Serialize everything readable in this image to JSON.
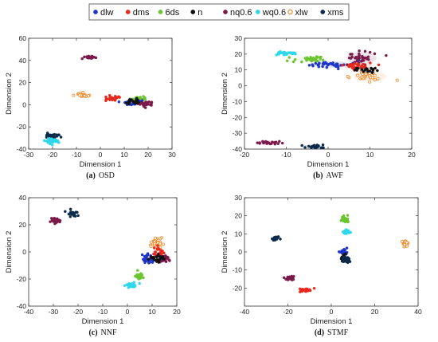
{
  "legend": {
    "entries": [
      {
        "label": "dlw",
        "color": "#1f35c8"
      },
      {
        "label": "dms",
        "color": "#e8291c"
      },
      {
        "label": "6ds",
        "color": "#6cc431"
      },
      {
        "label": "n",
        "color": "#111111"
      },
      {
        "label": "nq0.6",
        "color": "#7b1a4a"
      },
      {
        "label": "wq0.6",
        "color": "#2fd7ea"
      },
      {
        "label": "xlw",
        "color": "#f08a2a"
      },
      {
        "label": "xms",
        "color": "#0c2a4a"
      }
    ]
  },
  "chart_data": [
    {
      "type": "scatter",
      "caption_label": "(a)",
      "caption_name": "OSD",
      "xlabel": "Dimension 1",
      "ylabel": "Dimension 2",
      "xlim": [
        -30,
        30
      ],
      "ylim": [
        -40,
        60
      ],
      "xticks": [
        -30,
        -20,
        -10,
        0,
        10,
        20,
        30
      ],
      "yticks": [
        -40,
        -20,
        0,
        20,
        40,
        60
      ],
      "clusters": [
        {
          "series": "xms",
          "cx": -20.5,
          "cy": -28.0,
          "sx": 1.5,
          "sy": 1.2,
          "n": 30
        },
        {
          "series": "wq0.6",
          "cx": -20.5,
          "cy": -33.0,
          "sx": 1.4,
          "sy": 1.2,
          "n": 30
        },
        {
          "series": "nq0.6",
          "cx": -4.5,
          "cy": 43.0,
          "sx": 1.2,
          "sy": 0.8,
          "n": 25
        },
        {
          "series": "xlw",
          "cx": -7.5,
          "cy": 8.5,
          "sx": 1.2,
          "sy": 1.0,
          "n": 25
        },
        {
          "series": "dms",
          "cx": 5.0,
          "cy": 5.5,
          "sx": 1.6,
          "sy": 1.0,
          "n": 30
        },
        {
          "series": "6ds",
          "cx": 15.5,
          "cy": 4.5,
          "sx": 2.0,
          "sy": 1.3,
          "n": 30
        },
        {
          "series": "dlw",
          "cx": 12.5,
          "cy": 2.0,
          "sx": 1.8,
          "sy": 1.2,
          "n": 30
        },
        {
          "series": "n",
          "cx": 14.5,
          "cy": 2.5,
          "sx": 1.5,
          "sy": 1.2,
          "n": 25
        },
        {
          "series": "nq0.6",
          "cx": 18.5,
          "cy": 0.5,
          "sx": 1.5,
          "sy": 1.2,
          "n": 25
        }
      ]
    },
    {
      "type": "scatter",
      "caption_label": "(b)",
      "caption_name": "AWF",
      "xlabel": "Dimension 1",
      "ylabel": "Dimension 2",
      "xlim": [
        -20,
        20
      ],
      "ylim": [
        -40,
        30
      ],
      "xticks": [
        -20,
        -10,
        0,
        10,
        20
      ],
      "yticks": [
        -40,
        -30,
        -20,
        -10,
        0,
        10,
        20,
        30
      ],
      "clusters": [
        {
          "series": "wq0.6",
          "cx": -10.0,
          "cy": 20.5,
          "sx": 1.2,
          "sy": 0.6,
          "n": 30
        },
        {
          "series": "6ds",
          "cx": -4.5,
          "cy": 17.0,
          "sx": 2.0,
          "sy": 0.8,
          "n": 30
        },
        {
          "series": "dlw",
          "cx": 0.5,
          "cy": 13.5,
          "sx": 2.5,
          "sy": 1.2,
          "n": 35
        },
        {
          "series": "nq0.6",
          "cx": 8.0,
          "cy": 17.5,
          "sx": 2.0,
          "sy": 2.0,
          "n": 35
        },
        {
          "series": "dms",
          "cx": 7.0,
          "cy": 12.5,
          "sx": 2.0,
          "sy": 1.2,
          "n": 30
        },
        {
          "series": "xlw",
          "cx": 10.0,
          "cy": 6.0,
          "sx": 2.2,
          "sy": 1.8,
          "n": 35
        },
        {
          "series": "n",
          "cx": 9.0,
          "cy": 10.0,
          "sx": 1.5,
          "sy": 1.0,
          "n": 20
        },
        {
          "series": "nq0.6",
          "cx": -14.5,
          "cy": -36.0,
          "sx": 1.5,
          "sy": 0.5,
          "n": 25
        },
        {
          "series": "xms",
          "cx": -3.5,
          "cy": -38.5,
          "sx": 1.5,
          "sy": 0.5,
          "n": 25
        }
      ]
    },
    {
      "type": "scatter",
      "caption_label": "(c)",
      "caption_name": "NNF",
      "xlabel": "Dimension 1",
      "ylabel": "Dimension 2",
      "xlim": [
        -40,
        20
      ],
      "ylim": [
        -40,
        40
      ],
      "xticks": [
        -40,
        -30,
        -20,
        -10,
        0,
        10,
        20
      ],
      "yticks": [
        -40,
        -20,
        0,
        20,
        40
      ],
      "clusters": [
        {
          "series": "nq0.6",
          "cx": -29.0,
          "cy": 23.0,
          "sx": 1.0,
          "sy": 1.0,
          "n": 25
        },
        {
          "series": "xms",
          "cx": -22.5,
          "cy": 28.5,
          "sx": 1.2,
          "sy": 1.0,
          "n": 25
        },
        {
          "series": "xlw",
          "cx": 11.5,
          "cy": 7.0,
          "sx": 1.2,
          "sy": 2.0,
          "n": 30
        },
        {
          "series": "dms",
          "cx": 12.5,
          "cy": 0.0,
          "sx": 1.2,
          "sy": 2.0,
          "n": 25
        },
        {
          "series": "dlw",
          "cx": 8.5,
          "cy": -5.0,
          "sx": 1.5,
          "sy": 1.5,
          "n": 30
        },
        {
          "series": "nq0.6",
          "cx": 15.0,
          "cy": -5.0,
          "sx": 1.5,
          "sy": 1.2,
          "n": 25
        },
        {
          "series": "n",
          "cx": 12.0,
          "cy": -5.0,
          "sx": 1.5,
          "sy": 1.5,
          "n": 25
        },
        {
          "series": "6ds",
          "cx": 4.5,
          "cy": -17.0,
          "sx": 1.0,
          "sy": 1.2,
          "n": 25
        },
        {
          "series": "wq0.6",
          "cx": 1.5,
          "cy": -24.5,
          "sx": 1.2,
          "sy": 1.0,
          "n": 25
        }
      ]
    },
    {
      "type": "scatter",
      "caption_label": "(d)",
      "caption_name": "STMF",
      "xlabel": "Dimension 1",
      "ylabel": "Dimension 2",
      "xlim": [
        -40,
        40
      ],
      "ylim": [
        -30,
        30
      ],
      "xticks": [
        -40,
        -20,
        0,
        20,
        40
      ],
      "yticks": [
        -20,
        -10,
        0,
        10,
        20,
        30
      ],
      "clusters": [
        {
          "series": "xms",
          "cx": -25.5,
          "cy": 7.5,
          "sx": 0.8,
          "sy": 0.6,
          "n": 20
        },
        {
          "series": "nq0.6",
          "cx": -19.0,
          "cy": -14.5,
          "sx": 1.2,
          "sy": 0.6,
          "n": 25
        },
        {
          "series": "dms",
          "cx": -12.0,
          "cy": -21.0,
          "sx": 1.4,
          "sy": 0.6,
          "n": 25
        },
        {
          "series": "6ds",
          "cx": 6.0,
          "cy": 18.0,
          "sx": 0.8,
          "sy": 0.8,
          "n": 25
        },
        {
          "series": "wq0.6",
          "cx": 7.5,
          "cy": 11.0,
          "sx": 1.0,
          "sy": 0.6,
          "n": 25
        },
        {
          "series": "dlw",
          "cx": 5.5,
          "cy": 0.0,
          "sx": 0.8,
          "sy": 1.0,
          "n": 25
        },
        {
          "series": "n",
          "cx": 6.0,
          "cy": -3.5,
          "sx": 0.8,
          "sy": 1.0,
          "n": 20
        },
        {
          "series": "xms",
          "cx": 7.0,
          "cy": -4.5,
          "sx": 1.0,
          "sy": 0.8,
          "n": 20
        },
        {
          "series": "xlw",
          "cx": 34.0,
          "cy": 4.5,
          "sx": 0.8,
          "sy": 0.8,
          "n": 25
        }
      ]
    }
  ]
}
